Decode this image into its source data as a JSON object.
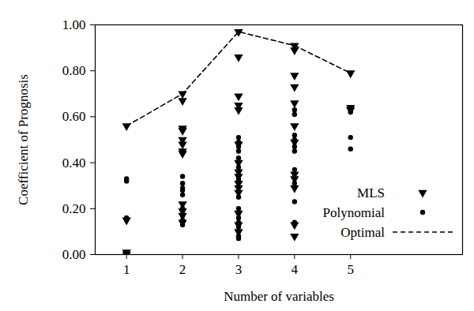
{
  "chart_data": {
    "type": "scatter",
    "x_label": "Number of variables",
    "y_label": "Coefficient of Prognosis",
    "xlim": [
      0.44,
      7.0
    ],
    "xticks": [
      1,
      2,
      3,
      4,
      5
    ],
    "ylim": [
      0,
      1
    ],
    "yticks": [
      {
        "value": 0,
        "label": "0.00"
      },
      {
        "value": 0.2,
        "label": "0.20"
      },
      {
        "value": 0.4,
        "label": "0.40"
      },
      {
        "value": 0.6,
        "label": "0.60"
      },
      {
        "value": 0.8,
        "label": "0.80"
      },
      {
        "value": 1,
        "label": "1.00"
      }
    ],
    "grid": false,
    "legend": "lower right",
    "series": [
      {
        "name": "MLS",
        "type": "scatter",
        "marker": "triangle-down",
        "color": "#000000",
        "x": [
          1,
          1,
          1,
          1,
          2,
          2,
          2,
          2,
          2,
          2,
          2,
          2,
          2,
          2,
          2,
          2,
          3,
          3,
          3,
          3,
          3,
          3,
          3,
          3,
          3,
          3,
          3,
          3,
          3,
          3,
          3,
          4,
          4,
          4,
          4,
          4,
          4,
          4,
          4,
          4,
          4,
          4,
          4,
          5,
          5,
          5
        ],
        "values": [
          0.56,
          0.15,
          0.01,
          0.0,
          0.7,
          0.67,
          0.55,
          0.54,
          0.5,
          0.48,
          0.45,
          0.44,
          0.22,
          0.19,
          0.17,
          0.14,
          0.97,
          0.86,
          0.69,
          0.65,
          0.63,
          0.48,
          0.4,
          0.36,
          0.34,
          0.31,
          0.29,
          0.27,
          0.18,
          0.13,
          0.1,
          0.91,
          0.89,
          0.78,
          0.73,
          0.66,
          0.56,
          0.49,
          0.35,
          0.33,
          0.29,
          0.13,
          0.08,
          0.79,
          0.64,
          0.63
        ]
      },
      {
        "name": "Polynomial",
        "type": "scatter",
        "marker": "circle",
        "color": "#000000",
        "x": [
          1,
          1,
          1,
          1,
          2,
          2,
          2,
          2,
          2,
          2,
          2,
          2,
          2,
          2,
          3,
          3,
          3,
          3,
          3,
          3,
          3,
          3,
          3,
          3,
          3,
          3,
          3,
          3,
          3,
          3,
          3,
          4,
          4,
          4,
          4,
          4,
          4,
          4,
          4,
          4,
          4,
          5,
          5,
          5
        ],
        "values": [
          0.33,
          0.32,
          0.16,
          0.0,
          0.34,
          0.31,
          0.29,
          0.28,
          0.26,
          0.2,
          0.17,
          0.15,
          0.14,
          0.13,
          0.51,
          0.49,
          0.47,
          0.45,
          0.42,
          0.38,
          0.33,
          0.32,
          0.25,
          0.2,
          0.18,
          0.16,
          0.14,
          0.12,
          0.1,
          0.08,
          0.07,
          0.63,
          0.61,
          0.52,
          0.5,
          0.47,
          0.45,
          0.37,
          0.31,
          0.23,
          0.14,
          0.62,
          0.51,
          0.46
        ]
      },
      {
        "name": "Optimal",
        "type": "line",
        "line_style": "dashed",
        "color": "#000000",
        "x": [
          1,
          2,
          3,
          4,
          5
        ],
        "values": [
          0.56,
          0.7,
          0.97,
          0.91,
          0.79
        ]
      }
    ]
  }
}
